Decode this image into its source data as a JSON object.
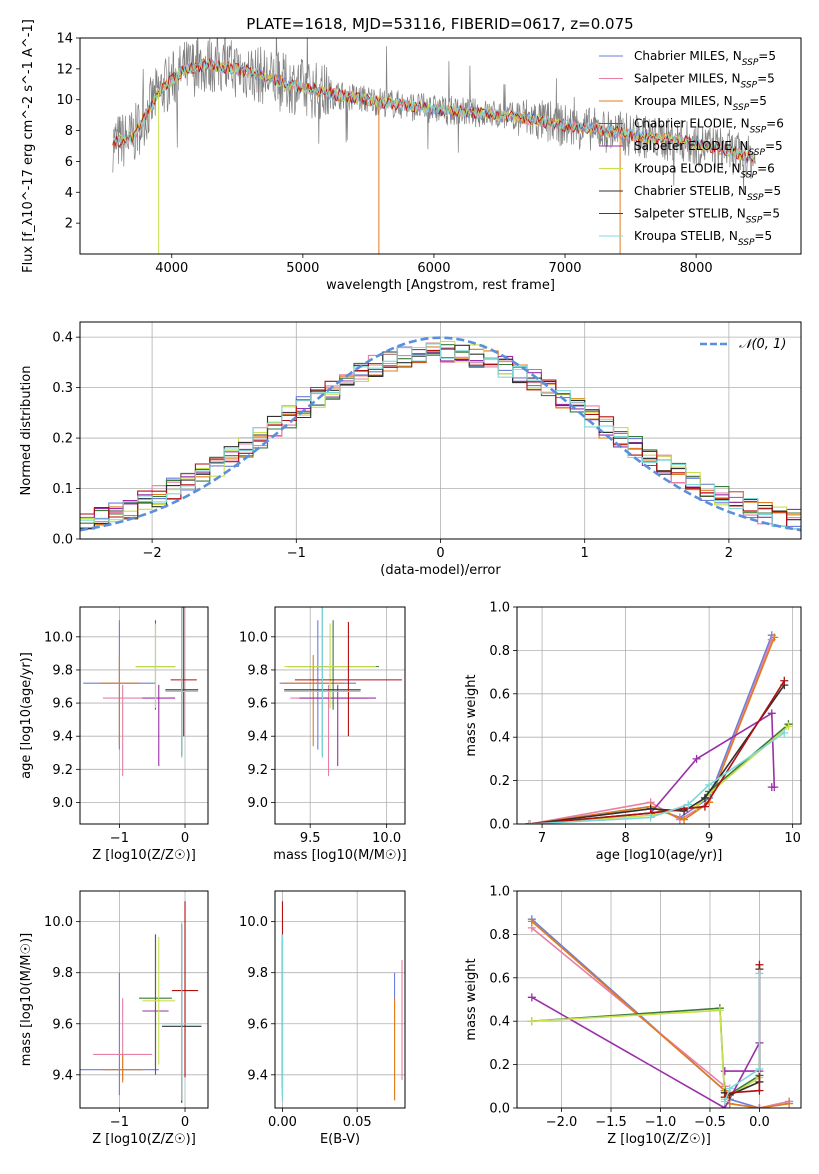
{
  "figure_title": "PLATE=1618, MJD=53116, FIBERID=0617, z=0.075",
  "colors": {
    "chabrier_miles": "#6a7fdb",
    "salpeter_miles": "#e87fa6",
    "kroupa_miles": "#e07b1f",
    "chabrier_elodie": "#3a7a3a",
    "salpeter_elodie": "#9a2fa8",
    "kroupa_elodie": "#c8e04a",
    "chabrier_stelib": "#303030",
    "salpeter_stelib": "#b01010",
    "kroupa_stelib": "#7fd8d8",
    "data": "#808080",
    "normal": "#5a8fdc"
  },
  "chart_data": [
    {
      "id": "spectrum",
      "type": "line",
      "xlabel": "wavelength [Angstrom, rest frame]",
      "ylabel": "Flux [f_λ10^-17 erg cm^-2 s^-1 A^-1]",
      "xlim": [
        3300,
        8800
      ],
      "ylim": [
        0,
        14
      ],
      "xticks": [
        4000,
        5000,
        6000,
        7000,
        8000
      ],
      "yticks": [
        2,
        4,
        6,
        8,
        10,
        12,
        14
      ],
      "continuum": {
        "x": [
          3550,
          3700,
          3900,
          4100,
          4300,
          4600,
          4900,
          5200,
          5500,
          5800,
          6100,
          6400,
          6700,
          7000,
          7300,
          7600,
          7900,
          8200,
          8450
        ],
        "y": [
          7.2,
          7.5,
          10.5,
          12.0,
          12.3,
          11.8,
          11.0,
          10.4,
          10.0,
          9.6,
          9.3,
          9.1,
          8.8,
          8.3,
          8.0,
          7.6,
          7.3,
          6.8,
          6.1
        ]
      },
      "legend": [
        {
          "label": "Chabrier MILES, N",
          "sub": "SSP",
          "suffix": "=5",
          "color_key": "chabrier_miles"
        },
        {
          "label": "Salpeter MILES, N",
          "sub": "SSP",
          "suffix": "=5",
          "color_key": "salpeter_miles"
        },
        {
          "label": "Kroupa MILES, N",
          "sub": "SSP",
          "suffix": "=5",
          "color_key": "kroupa_miles"
        },
        {
          "label": "Chabrier ELODIE, N",
          "sub": "SSP",
          "suffix": "=6",
          "color_key": "chabrier_elodie"
        },
        {
          "label": "Salpeter ELODIE, N",
          "sub": "SSP",
          "suffix": "=5",
          "color_key": "salpeter_elodie"
        },
        {
          "label": "Kroupa ELODIE, N",
          "sub": "SSP",
          "suffix": "=6",
          "color_key": "kroupa_elodie"
        },
        {
          "label": "Chabrier STELIB, N",
          "sub": "SSP",
          "suffix": "=5",
          "color_key": "chabrier_stelib"
        },
        {
          "label": "Salpeter STELIB, N",
          "sub": "SSP",
          "suffix": "=5",
          "color_key": "salpeter_stelib"
        },
        {
          "label": "Kroupa STELIB, N",
          "sub": "SSP",
          "suffix": "=5",
          "color_key": "kroupa_stelib"
        }
      ]
    },
    {
      "id": "residuals",
      "type": "line",
      "xlabel": "(data-model)/error",
      "ylabel": "Normed distribution",
      "xlim": [
        -2.5,
        2.5
      ],
      "ylim": [
        0,
        0.43
      ],
      "xticks": [
        -2,
        -1,
        0,
        1,
        2
      ],
      "yticks": [
        0.0,
        0.1,
        0.2,
        0.3,
        0.4
      ],
      "legend_label": "𝒩(0, 1)",
      "legend_position": "top-right",
      "grid": true
    },
    {
      "id": "age_vs_Z",
      "type": "scatter",
      "xlabel": "Z [log10(Z/Z☉)]",
      "ylabel": "age [log10(age/yr)]",
      "xlim": [
        -1.6,
        0.35
      ],
      "ylim": [
        8.87,
        10.18
      ],
      "xticks": [
        -1,
        0
      ],
      "yticks": [
        9.0,
        9.2,
        9.4,
        9.6,
        9.8,
        10.0
      ],
      "points": [
        {
          "key": "chabrier_miles",
          "x": -1.0,
          "y": 9.72,
          "xerr": 0.55,
          "yerr": [
            0.4,
            0.38
          ]
        },
        {
          "key": "salpeter_miles",
          "x": -0.95,
          "y": 9.63,
          "xerr": 0.3,
          "yerr": [
            0.47,
            0.08
          ]
        },
        {
          "key": "kroupa_miles",
          "x": -1.0,
          "y": 9.72,
          "xerr": 0.3,
          "yerr": [
            0.38,
            0.17
          ]
        },
        {
          "key": "chabrier_elodie",
          "x": -0.45,
          "y": 9.82,
          "xerr": 0.3,
          "yerr": [
            0.26,
            0.28
          ]
        },
        {
          "key": "salpeter_elodie",
          "x": -0.4,
          "y": 9.63,
          "xerr": 0.25,
          "yerr": [
            0.41,
            0.08
          ]
        },
        {
          "key": "kroupa_elodie",
          "x": -0.45,
          "y": 9.82,
          "xerr": 0.3,
          "yerr": [
            0.25,
            0.26
          ]
        },
        {
          "key": "chabrier_stelib",
          "x": -0.05,
          "y": 9.68,
          "xerr": 0.25,
          "yerr": [
            0.4,
            0.73
          ]
        },
        {
          "key": "salpeter_stelib",
          "x": -0.02,
          "y": 9.74,
          "xerr": 0.2,
          "yerr": [
            0.34,
            0.82
          ]
        },
        {
          "key": "kroupa_stelib",
          "x": -0.05,
          "y": 9.67,
          "xerr": 0.25,
          "yerr": [
            0.4,
            0.75
          ]
        }
      ]
    },
    {
      "id": "age_vs_mass",
      "type": "scatter",
      "xlabel": "mass [log10(M/M☉)]",
      "ylabel": "",
      "xlim": [
        9.27,
        10.12
      ],
      "ylim": [
        8.87,
        10.18
      ],
      "xticks": [
        9.5,
        10.0
      ],
      "yticks": [
        9.0,
        9.2,
        9.4,
        9.6,
        9.8,
        10.0
      ],
      "points": [
        {
          "key": "chabrier_miles",
          "x": 9.55,
          "y": 9.72,
          "xerr": 0.25,
          "yerr": [
            0.4,
            0.38
          ]
        },
        {
          "key": "salpeter_miles",
          "x": 9.62,
          "y": 9.63,
          "xerr": 0.25,
          "yerr": [
            0.47,
            0.08
          ]
        },
        {
          "key": "kroupa_miles",
          "x": 9.52,
          "y": 9.72,
          "xerr": 0.2,
          "yerr": [
            0.38,
            0.17
          ]
        },
        {
          "key": "chabrier_elodie",
          "x": 9.65,
          "y": 9.82,
          "xerr": 0.3,
          "yerr": [
            0.26,
            0.28
          ]
        },
        {
          "key": "salpeter_elodie",
          "x": 9.68,
          "y": 9.63,
          "xerr": 0.25,
          "yerr": [
            0.41,
            0.08
          ]
        },
        {
          "key": "kroupa_elodie",
          "x": 9.63,
          "y": 9.82,
          "xerr": 0.3,
          "yerr": [
            0.25,
            0.26
          ]
        },
        {
          "key": "chabrier_stelib",
          "x": 9.58,
          "y": 9.68,
          "xerr": 0.25,
          "yerr": [
            0.4,
            0.73
          ]
        },
        {
          "key": "salpeter_stelib",
          "x": 9.75,
          "y": 9.74,
          "xerr": 0.35,
          "yerr": [
            0.34,
            0.35
          ]
        },
        {
          "key": "kroupa_stelib",
          "x": 9.58,
          "y": 9.67,
          "xerr": 0.25,
          "yerr": [
            0.4,
            0.75
          ]
        }
      ]
    },
    {
      "id": "massweight_vs_age",
      "type": "line",
      "xlabel": "age [log10(age/yr)]",
      "ylabel": "mass weight",
      "xlim": [
        6.7,
        10.1
      ],
      "ylim": [
        0,
        1.0
      ],
      "xticks": [
        7,
        8,
        9,
        10
      ],
      "yticks": [
        0.0,
        0.2,
        0.4,
        0.6,
        0.8,
        1.0
      ],
      "grid": true,
      "series": [
        {
          "key": "chabrier_miles",
          "x": [
            6.85,
            8.3,
            8.65,
            9.0,
            9.75
          ],
          "y": [
            0.0,
            0.08,
            0.03,
            0.12,
            0.87
          ]
        },
        {
          "key": "salpeter_miles",
          "x": [
            6.85,
            8.3,
            8.65,
            9.0,
            9.75
          ],
          "y": [
            0.0,
            0.1,
            0.02,
            0.1,
            0.85
          ]
        },
        {
          "key": "kroupa_miles",
          "x": [
            6.85,
            8.3,
            8.7,
            9.0,
            9.78
          ],
          "y": [
            0.0,
            0.08,
            0.02,
            0.1,
            0.86
          ]
        },
        {
          "key": "chabrier_elodie",
          "x": [
            6.85,
            8.3,
            8.85,
            9.0,
            9.95
          ],
          "y": [
            0.0,
            0.05,
            0.08,
            0.15,
            0.46
          ]
        },
        {
          "key": "salpeter_elodie",
          "x": [
            6.85,
            8.3,
            8.85,
            9.75,
            9.78,
            9.75
          ],
          "y": [
            0.0,
            0.05,
            0.3,
            0.51,
            0.17,
            0.17
          ]
        },
        {
          "key": "kroupa_elodie",
          "x": [
            6.85,
            8.3,
            8.85,
            9.0,
            9.95
          ],
          "y": [
            0.0,
            0.04,
            0.08,
            0.14,
            0.45
          ]
        },
        {
          "key": "chabrier_stelib",
          "x": [
            6.85,
            8.3,
            8.7,
            8.95,
            9.9
          ],
          "y": [
            0.0,
            0.07,
            0.06,
            0.12,
            0.64
          ]
        },
        {
          "key": "salpeter_stelib",
          "x": [
            6.85,
            8.3,
            8.7,
            8.95,
            9.9
          ],
          "y": [
            0.0,
            0.05,
            0.07,
            0.08,
            0.66
          ]
        },
        {
          "key": "kroupa_stelib",
          "x": [
            6.85,
            8.3,
            8.75,
            9.0,
            9.9
          ],
          "y": [
            0.0,
            0.03,
            0.09,
            0.18,
            0.42
          ]
        }
      ]
    },
    {
      "id": "mass_vs_Z",
      "type": "scatter",
      "xlabel": "Z [log10(Z/Z☉)]",
      "ylabel": "mass [log10(M/M☉)]",
      "xlim": [
        -1.6,
        0.35
      ],
      "ylim": [
        9.27,
        10.12
      ],
      "xticks": [
        -1,
        0
      ],
      "yticks": [
        9.4,
        9.6,
        9.8,
        10.0
      ],
      "points": [
        {
          "key": "chabrier_miles",
          "x": -1.0,
          "y": 9.42,
          "xerr": 0.6,
          "yerr": [
            0.1,
            0.38
          ]
        },
        {
          "key": "salpeter_miles",
          "x": -0.95,
          "y": 9.48,
          "xerr": 0.45,
          "yerr": [
            0.1,
            0.22
          ]
        },
        {
          "key": "kroupa_miles",
          "x": -0.95,
          "y": 9.42,
          "xerr": 0.3,
          "yerr": [
            0.05,
            0.06
          ]
        },
        {
          "key": "chabrier_elodie",
          "x": -0.45,
          "y": 9.7,
          "xerr": 0.25,
          "yerr": [
            0.28,
            0.25
          ]
        },
        {
          "key": "salpeter_elodie",
          "x": -0.45,
          "y": 9.65,
          "xerr": 0.2,
          "yerr": [
            0.25,
            0.3
          ]
        },
        {
          "key": "kroupa_elodie",
          "x": -0.4,
          "y": 9.69,
          "xerr": 0.25,
          "yerr": [
            0.25,
            0.25
          ]
        },
        {
          "key": "chabrier_stelib",
          "x": -0.05,
          "y": 9.59,
          "xerr": 0.3,
          "yerr": [
            0.3,
            0.4
          ]
        },
        {
          "key": "salpeter_stelib",
          "x": 0.0,
          "y": 9.73,
          "xerr": 0.2,
          "yerr": [
            0.34,
            0.35
          ]
        },
        {
          "key": "kroupa_stelib",
          "x": -0.05,
          "y": 9.6,
          "xerr": 0.3,
          "yerr": [
            0.3,
            0.4
          ]
        }
      ]
    },
    {
      "id": "mass_vs_ebv",
      "type": "scatter",
      "xlabel": "E(B-V)",
      "ylabel": "",
      "xlim": [
        -0.005,
        0.082
      ],
      "ylim": [
        9.27,
        10.12
      ],
      "xticks": [
        0.0,
        0.05
      ],
      "yticks": [
        9.4,
        9.6,
        9.8,
        10.0
      ],
      "points": [
        {
          "key": "chabrier_miles",
          "x": 0.075,
          "y": 9.55,
          "yerr": [
            0.25,
            0.25
          ]
        },
        {
          "key": "salpeter_miles",
          "x": 0.08,
          "y": 9.6,
          "yerr": [
            0.22,
            0.25
          ]
        },
        {
          "key": "kroupa_miles",
          "x": 0.075,
          "y": 9.5,
          "yerr": [
            0.2,
            0.2
          ]
        },
        {
          "key": "chabrier_elodie",
          "x": 0.0,
          "y": 9.62,
          "yerr": [
            0.3,
            0.3
          ]
        },
        {
          "key": "salpeter_elodie",
          "x": 0.0,
          "y": 9.65,
          "yerr": [
            0.3,
            0.3
          ]
        },
        {
          "key": "kroupa_elodie",
          "x": 0.0,
          "y": 9.62,
          "yerr": [
            0.3,
            0.3
          ]
        },
        {
          "key": "chabrier_stelib",
          "x": 0.0,
          "y": 9.6,
          "yerr": [
            0.3,
            0.35
          ]
        },
        {
          "key": "salpeter_stelib",
          "x": 0.0,
          "y": 9.7,
          "yerr": [
            0.35,
            0.38
          ]
        },
        {
          "key": "kroupa_stelib",
          "x": 0.0,
          "y": 9.6,
          "yerr": [
            0.3,
            0.35
          ]
        }
      ]
    },
    {
      "id": "massweight_vs_Z",
      "type": "line",
      "xlabel": "Z [log10(Z/Z☉)]",
      "ylabel": "mass weight",
      "xlim": [
        -2.45,
        0.42
      ],
      "ylim": [
        0,
        1.0
      ],
      "xticks": [
        -2.0,
        -1.5,
        -1.0,
        -0.5,
        0.0
      ],
      "yticks": [
        0.0,
        0.2,
        0.4,
        0.6,
        0.8,
        1.0
      ],
      "grid": true,
      "series": [
        {
          "key": "chabrier_miles",
          "x": [
            -2.3,
            -0.35,
            -0.3,
            0.0,
            0.3
          ],
          "y": [
            0.87,
            0.08,
            0.04,
            0.0,
            0.03
          ]
        },
        {
          "key": "salpeter_miles",
          "x": [
            -2.3,
            -0.35,
            -0.3,
            0.0,
            0.3
          ],
          "y": [
            0.83,
            0.1,
            0.02,
            0.0,
            0.03
          ]
        },
        {
          "key": "kroupa_miles",
          "x": [
            -2.3,
            -0.35,
            -0.3,
            0.0,
            0.3
          ],
          "y": [
            0.86,
            0.08,
            0.02,
            0.0,
            0.02
          ]
        },
        {
          "key": "chabrier_elodie",
          "x": [
            -2.3,
            -0.4,
            -0.35,
            0.0
          ],
          "y": [
            0.4,
            0.46,
            0.05,
            0.15
          ]
        },
        {
          "key": "salpeter_elodie",
          "x": [
            -2.3,
            -0.35,
            0.0,
            0.0,
            -0.35
          ],
          "y": [
            0.51,
            0.0,
            0.3,
            0.17,
            0.17
          ]
        },
        {
          "key": "kroupa_elodie",
          "x": [
            -2.3,
            -0.4,
            -0.35,
            0.0
          ],
          "y": [
            0.4,
            0.45,
            0.04,
            0.14
          ]
        },
        {
          "key": "chabrier_stelib",
          "x": [
            -0.35,
            -0.3,
            0.0,
            0.0
          ],
          "y": [
            0.07,
            0.06,
            0.12,
            0.64
          ]
        },
        {
          "key": "salpeter_stelib",
          "x": [
            -0.35,
            -0.3,
            0.0,
            0.0
          ],
          "y": [
            0.05,
            0.07,
            0.08,
            0.66
          ]
        },
        {
          "key": "kroupa_stelib",
          "x": [
            -0.35,
            -0.3,
            0.0,
            0.0
          ],
          "y": [
            0.03,
            0.09,
            0.18,
            0.62
          ]
        }
      ]
    }
  ]
}
